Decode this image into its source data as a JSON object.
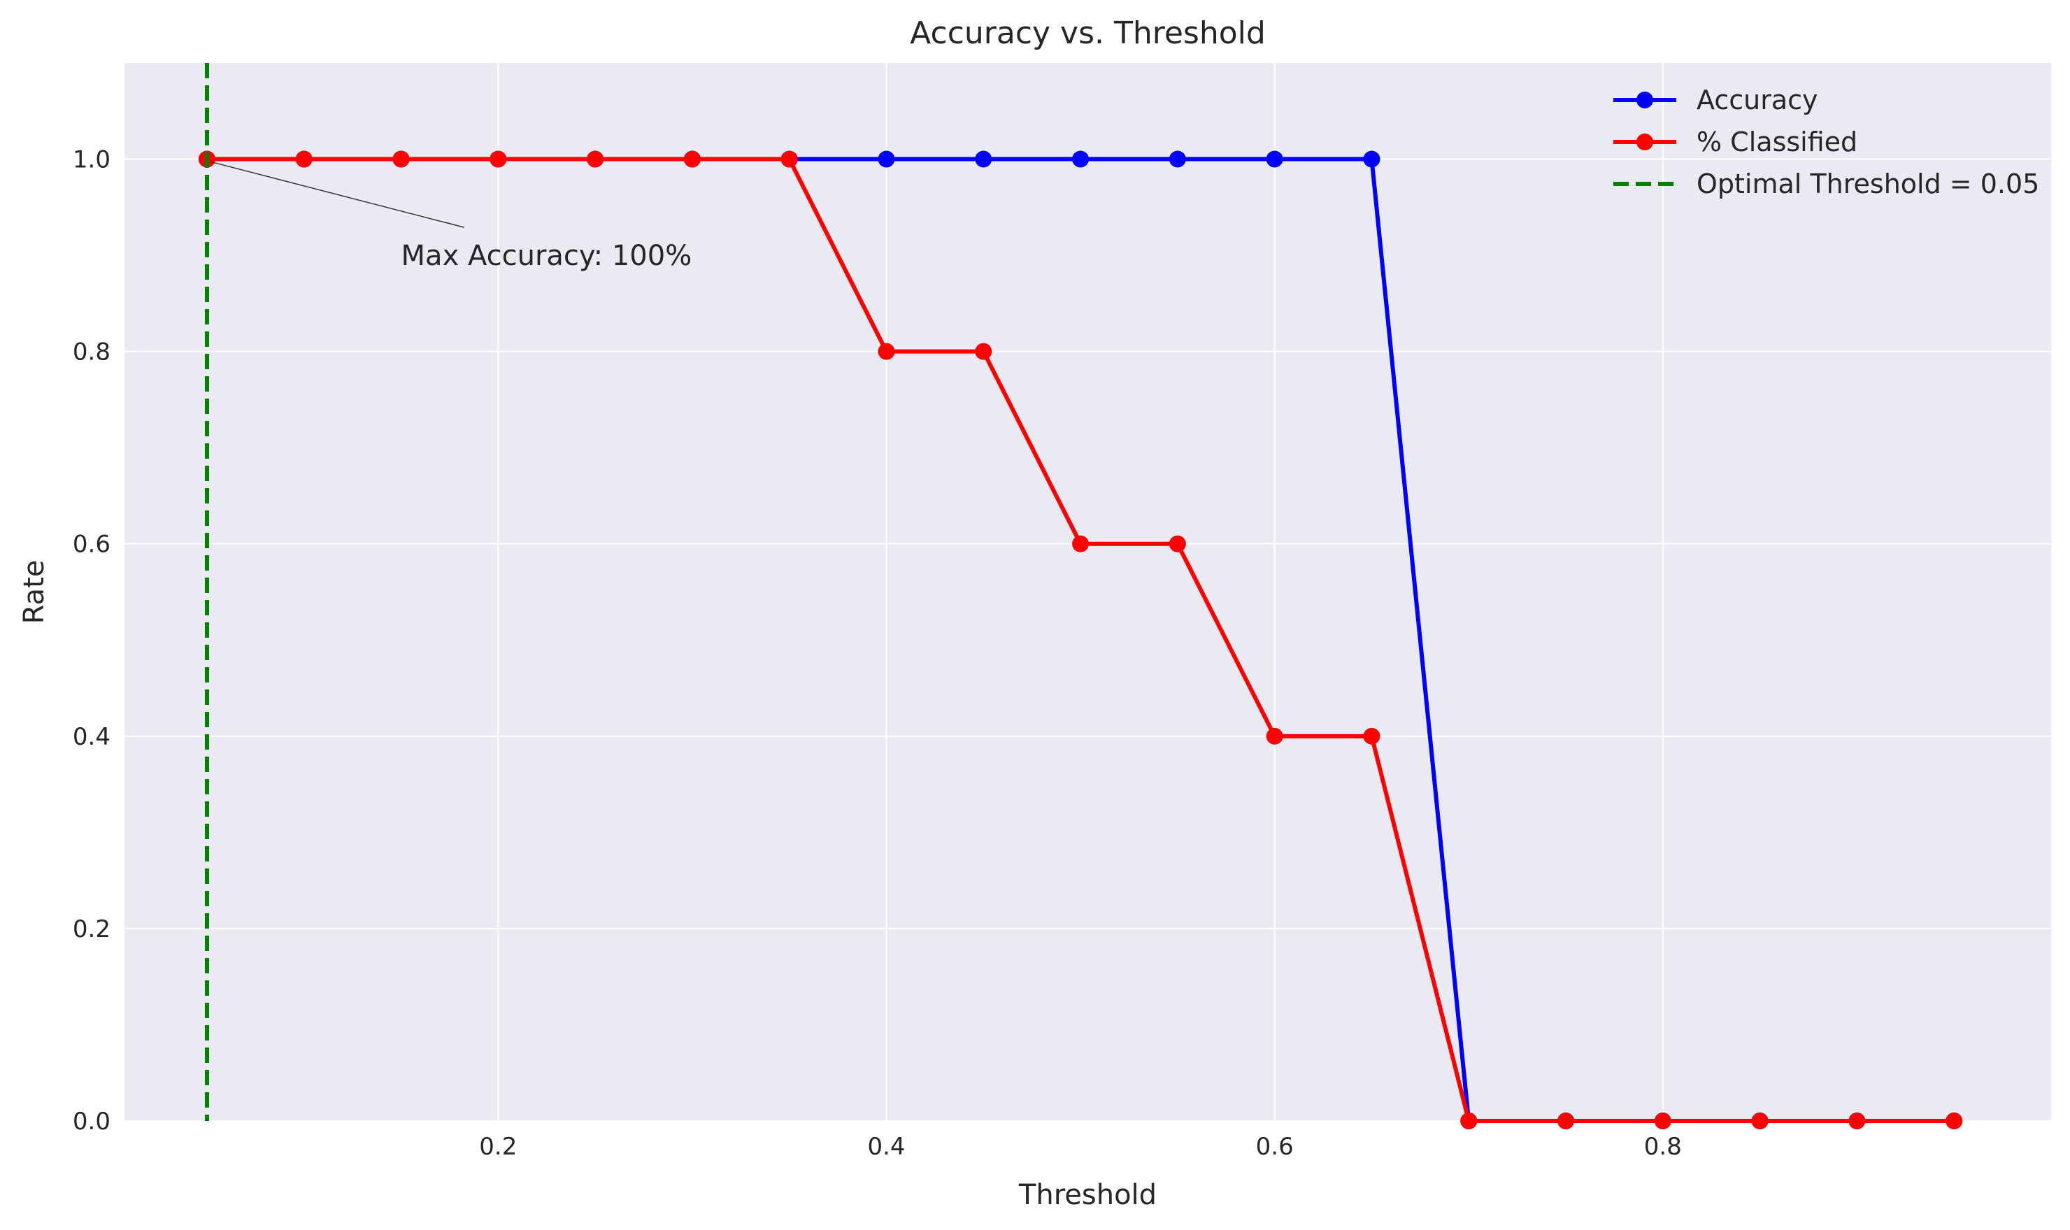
{
  "chart_data": {
    "type": "line",
    "title": "Accuracy vs. Threshold",
    "xlabel": "Threshold",
    "ylabel": "Rate",
    "xlim": [
      0.0075,
      1.0
    ],
    "ylim": [
      0.0,
      1.1
    ],
    "xticks": [
      0.2,
      0.4,
      0.6,
      0.8
    ],
    "yticks": [
      0.0,
      0.2,
      0.4,
      0.6,
      0.8,
      1.0
    ],
    "xtick_labels": [
      "0.2",
      "0.4",
      "0.6",
      "0.8"
    ],
    "ytick_labels": [
      "0.0",
      "0.2",
      "0.4",
      "0.6",
      "0.8",
      "1.0"
    ],
    "grid": true,
    "legend_position": "top-right",
    "x": [
      0.05,
      0.1,
      0.15,
      0.2,
      0.25,
      0.3,
      0.35,
      0.4,
      0.45,
      0.5,
      0.55,
      0.6,
      0.65,
      0.7,
      0.75,
      0.8,
      0.85,
      0.9,
      0.95
    ],
    "series": [
      {
        "name": "Accuracy",
        "color": "#0000ff",
        "values": [
          1.0,
          1.0,
          1.0,
          1.0,
          1.0,
          1.0,
          1.0,
          1.0,
          1.0,
          1.0,
          1.0,
          1.0,
          1.0,
          0.0,
          0.0,
          0.0,
          0.0,
          0.0,
          0.0
        ]
      },
      {
        "name": "% Classified",
        "color": "#ff0000",
        "values": [
          1.0,
          1.0,
          1.0,
          1.0,
          1.0,
          1.0,
          1.0,
          0.8,
          0.8,
          0.6,
          0.6,
          0.4,
          0.4,
          0.0,
          0.0,
          0.0,
          0.0,
          0.0,
          0.0
        ]
      }
    ],
    "vline": {
      "x": 0.05,
      "label": "Optimal Threshold = 0.05",
      "color": "#008000",
      "style": "dashed"
    },
    "annotation": {
      "text": "Max Accuracy: 100%",
      "point": [
        0.05,
        1.0
      ],
      "text_position": [
        0.15,
        0.9
      ]
    },
    "background_color": "#eaeaf2"
  }
}
